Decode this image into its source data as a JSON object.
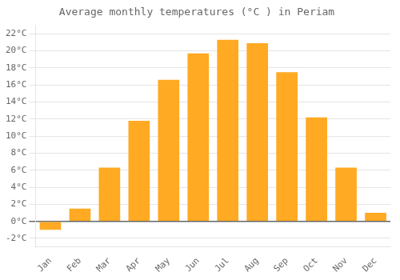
{
  "chart_data": {
    "type": "bar",
    "title": "Average monthly temperatures (°C ) in Periam",
    "categories": [
      "Jan",
      "Feb",
      "Mar",
      "Apr",
      "May",
      "Jun",
      "Jul",
      "Aug",
      "Sep",
      "Oct",
      "Nov",
      "Dec"
    ],
    "values": [
      -1.0,
      1.5,
      6.3,
      11.8,
      16.6,
      19.7,
      21.3,
      20.9,
      17.5,
      12.2,
      6.3,
      1.0
    ],
    "color": "#FFAA22",
    "ylim": [
      -3,
      23
    ],
    "yticks": [
      {
        "value": -2,
        "label": "-2°C"
      },
      {
        "value": 0,
        "label": "0°C"
      },
      {
        "value": 2,
        "label": "2°C"
      },
      {
        "value": 4,
        "label": "4°C"
      },
      {
        "value": 6,
        "label": "6°C"
      },
      {
        "value": 8,
        "label": "8°C"
      },
      {
        "value": 10,
        "label": "10°C"
      },
      {
        "value": 12,
        "label": "12°C"
      },
      {
        "value": 14,
        "label": "14°C"
      },
      {
        "value": 16,
        "label": "16°C"
      },
      {
        "value": 18,
        "label": "18°C"
      },
      {
        "value": 20,
        "label": "20°C"
      },
      {
        "value": 22,
        "label": "22°C"
      }
    ],
    "grid": true
  }
}
